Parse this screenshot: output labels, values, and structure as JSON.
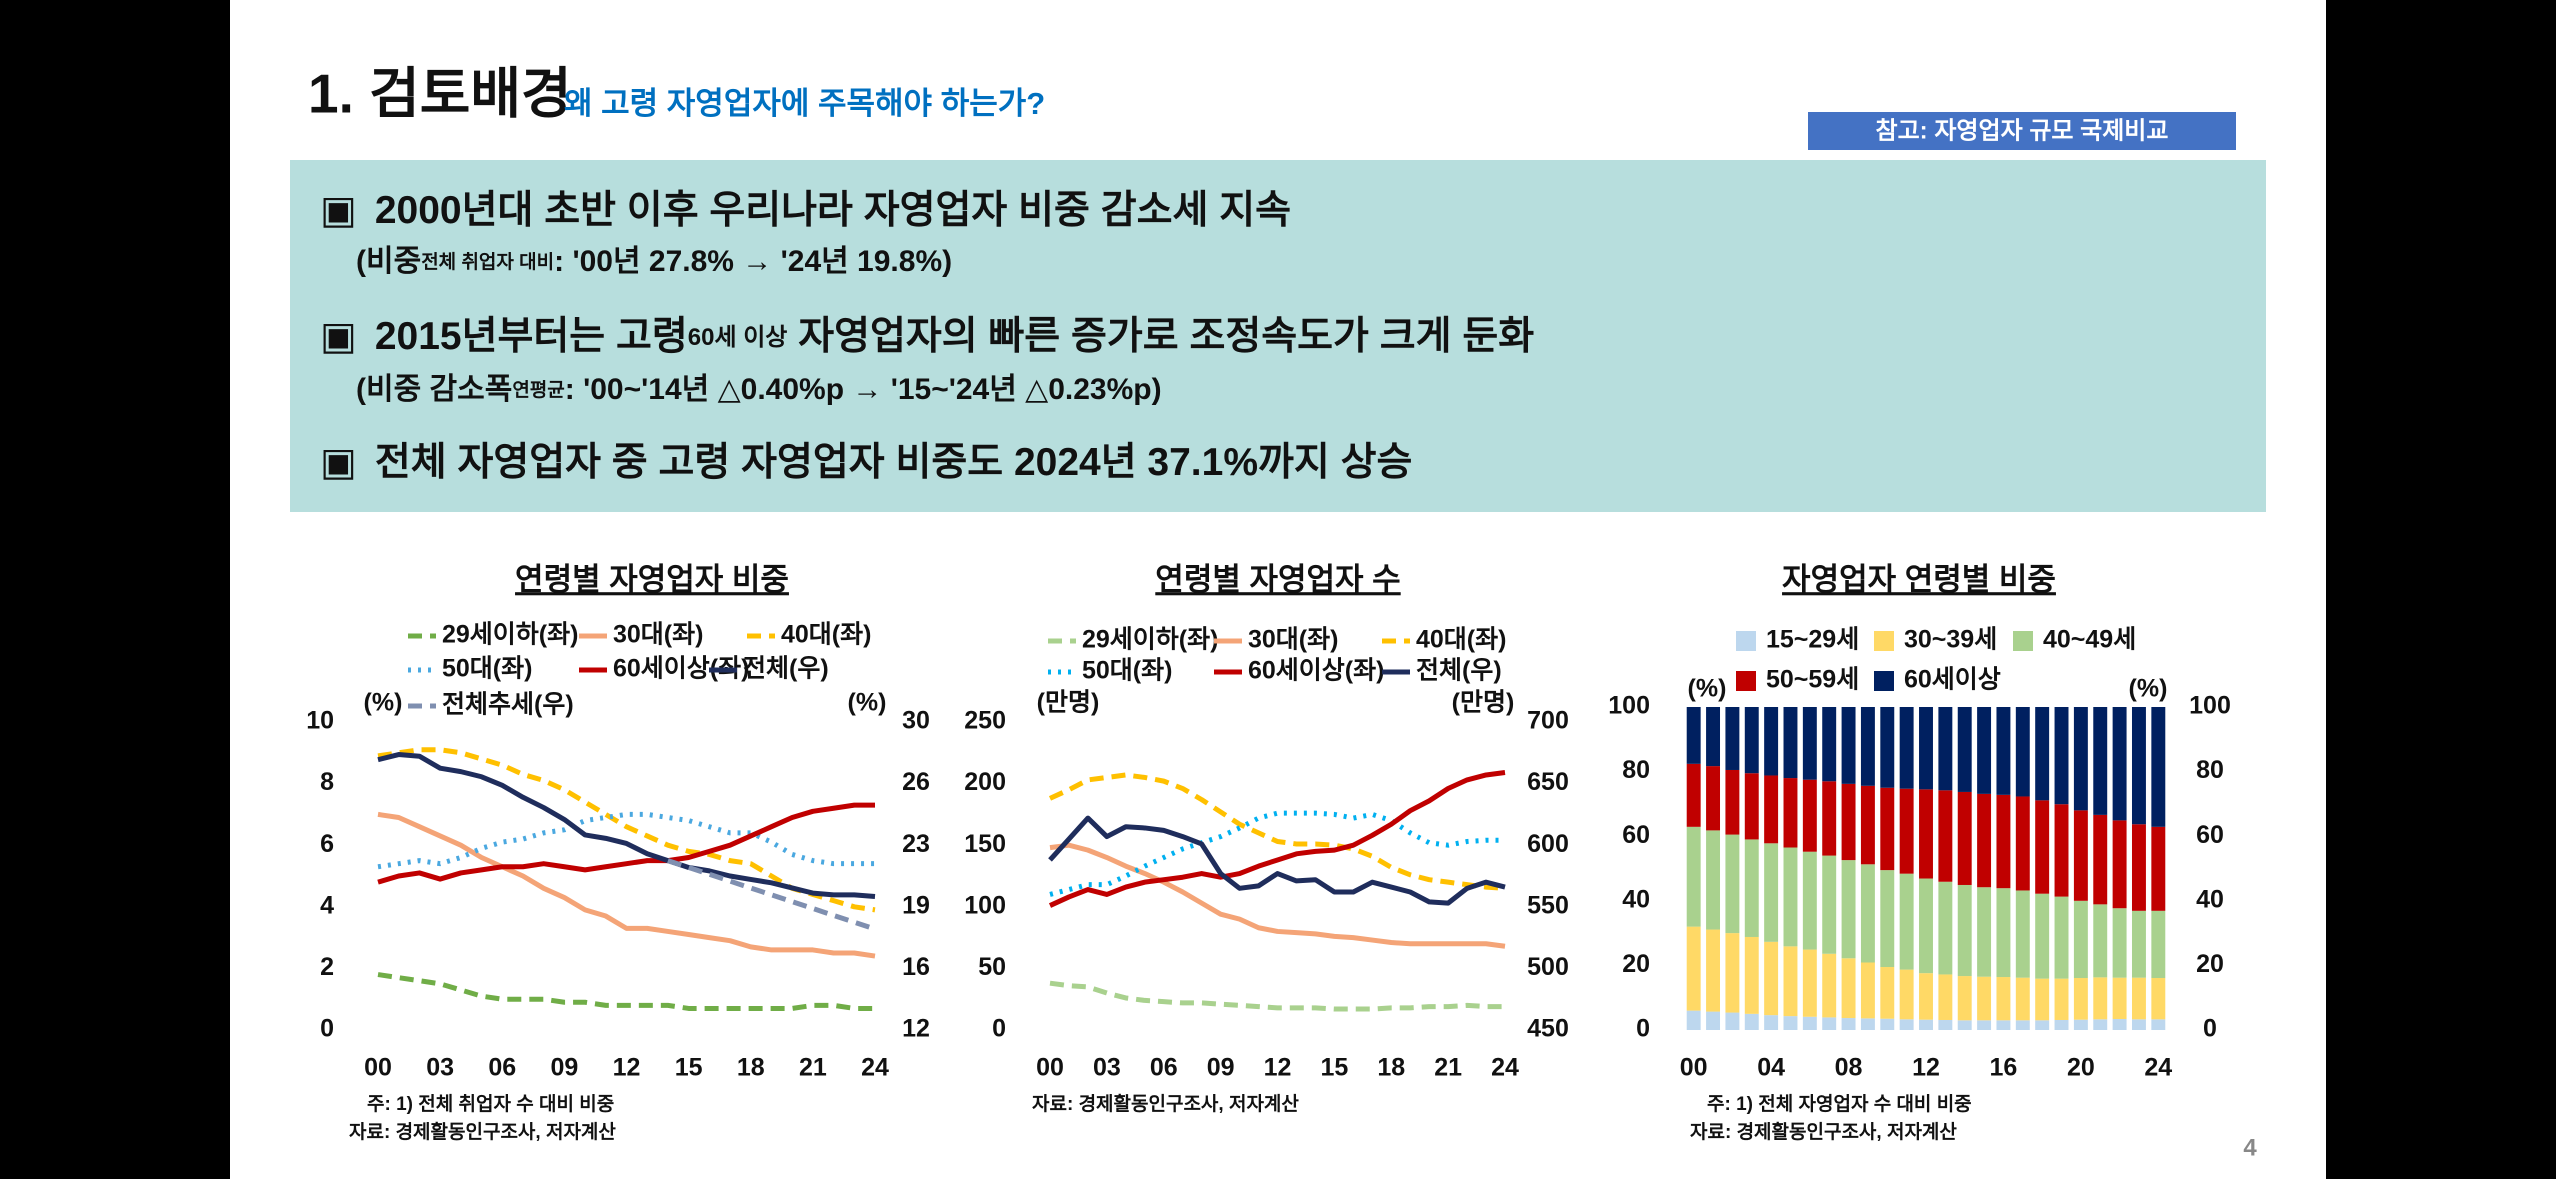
{
  "header": {
    "title": "1. 검토배경",
    "subtitle": "왜 고령 자영업자에 주목해야 하는가?",
    "tag": "참고: 자영업자 규모 국제비교"
  },
  "bullet_symbol": "▣",
  "bullets": [
    {
      "main": [
        "2000년대 초반 이후 우리나라 자영업자 비중 감소세 지속"
      ],
      "sub": [
        "(비중",
        "전체 취업자 대비",
        ": '00년 27.8% → '24년 19.8%)"
      ]
    },
    {
      "main": [
        "2015년부터는 고령",
        "60세 이상",
        " 자영업자의 빠른 증가로 조정속도가 크게 둔화"
      ],
      "sub": [
        "(비중 감소폭",
        "연평균",
        ": '00~'14년 △0.40%p → '15~'24년 △0.23%p)"
      ]
    },
    {
      "main": [
        "전체 자영업자 중 고령 자영업자 비중도 2024년 37.1%까지 상승"
      ]
    }
  ],
  "page_number": "4",
  "chart_data": [
    {
      "type": "line",
      "title": "연령별 자영업자 비중",
      "ylabel": "(%)",
      "y2label": "(%)",
      "x": [
        0,
        1,
        2,
        3,
        4,
        5,
        6,
        7,
        8,
        9,
        10,
        11,
        12,
        13,
        14,
        15,
        16,
        17,
        18,
        19,
        20,
        21,
        22,
        23,
        24
      ],
      "xlim": [
        0,
        24
      ],
      "xticks": [
        {
          "value": 0,
          "label": "00"
        },
        {
          "value": 3,
          "label": "03"
        },
        {
          "value": 6,
          "label": "06"
        },
        {
          "value": 9,
          "label": "09"
        },
        12,
        15,
        18,
        21,
        24
      ],
      "ylim": [
        0,
        10
      ],
      "yticks": [
        0,
        2,
        4,
        6,
        8,
        10
      ],
      "y2lim": [
        12,
        30
      ],
      "y2ticks": [
        12,
        {
          "value": 15.6,
          "label": "16"
        },
        {
          "value": 19.2,
          "label": "19"
        },
        {
          "value": 22.8,
          "label": "23"
        },
        {
          "value": 26.4,
          "label": "26"
        },
        30
      ],
      "series": [
        {
          "name": "29세이하(좌)",
          "color": "#70ad47",
          "dash": "dashed",
          "values": [
            1.8,
            1.7,
            1.6,
            1.5,
            1.3,
            1.1,
            1.0,
            1.0,
            1.0,
            0.9,
            0.9,
            0.8,
            0.8,
            0.8,
            0.8,
            0.7,
            0.7,
            0.7,
            0.7,
            0.7,
            0.7,
            0.8,
            0.8,
            0.7,
            0.7
          ]
        },
        {
          "name": "30대(좌)",
          "color": "#f4a477",
          "dash": "solid",
          "values": [
            7.0,
            6.9,
            6.6,
            6.3,
            6.0,
            5.6,
            5.3,
            5.0,
            4.6,
            4.3,
            3.9,
            3.7,
            3.3,
            3.3,
            3.2,
            3.1,
            3.0,
            2.9,
            2.7,
            2.6,
            2.6,
            2.6,
            2.5,
            2.5,
            2.4
          ]
        },
        {
          "name": "40대(좌)",
          "color": "#ffc000",
          "dash": "dashed",
          "values": [
            8.9,
            9.0,
            9.1,
            9.1,
            9.0,
            8.8,
            8.6,
            8.3,
            8.1,
            7.8,
            7.4,
            7.0,
            6.6,
            6.3,
            6.0,
            5.8,
            5.7,
            5.5,
            5.4,
            5.0,
            4.6,
            4.4,
            4.2,
            4.0,
            3.9
          ]
        },
        {
          "name": "50대(좌)",
          "color": "#4aa8e0",
          "dash": "dotted",
          "values": [
            5.3,
            5.4,
            5.5,
            5.4,
            5.6,
            5.9,
            6.1,
            6.2,
            6.4,
            6.5,
            6.8,
            6.9,
            7.0,
            7.0,
            6.9,
            6.8,
            6.6,
            6.4,
            6.4,
            6.1,
            5.7,
            5.5,
            5.4,
            5.4,
            5.4
          ]
        },
        {
          "name": "60세이상(좌)",
          "color": "#c00000",
          "dash": "solid",
          "values": [
            4.8,
            5.0,
            5.1,
            4.9,
            5.1,
            5.2,
            5.3,
            5.3,
            5.4,
            5.3,
            5.2,
            5.3,
            5.4,
            5.5,
            5.5,
            5.6,
            5.8,
            6.0,
            6.3,
            6.6,
            6.9,
            7.1,
            7.2,
            7.3,
            7.3
          ]
        },
        {
          "name": "전체(우)",
          "color": "#1f2d5c",
          "dash": "solid",
          "axis": "y2",
          "values": [
            27.8,
            28.1,
            28.0,
            27.3,
            27.1,
            26.8,
            26.3,
            25.6,
            25.0,
            24.3,
            23.4,
            23.2,
            22.9,
            22.3,
            21.9,
            21.5,
            21.3,
            21.0,
            20.8,
            20.6,
            20.3,
            20.0,
            19.9,
            19.9,
            19.8
          ]
        },
        {
          "name": "전체추세(우)",
          "color": "#7f8fb0",
          "dash": "dashed",
          "axis": "y2",
          "values": [
            null,
            null,
            null,
            null,
            null,
            null,
            null,
            null,
            null,
            null,
            null,
            null,
            null,
            null,
            21.9,
            21.5,
            21.1,
            20.7,
            20.3,
            19.9,
            19.5,
            19.1,
            18.7,
            18.3,
            17.9
          ]
        }
      ],
      "notes": [
        "주: 1) 전체 취업자 수 대비 비중",
        "자료: 경제활동인구조사, 저자계산"
      ]
    },
    {
      "type": "line",
      "title": "연령별 자영업자 수",
      "ylabel": "(만명)",
      "y2label": "(만명)",
      "x": [
        0,
        1,
        2,
        3,
        4,
        5,
        6,
        7,
        8,
        9,
        10,
        11,
        12,
        13,
        14,
        15,
        16,
        17,
        18,
        19,
        20,
        21,
        22,
        23,
        24
      ],
      "xlim": [
        0,
        24
      ],
      "xticks": [
        {
          "value": 0,
          "label": "00"
        },
        {
          "value": 3,
          "label": "03"
        },
        {
          "value": 6,
          "label": "06"
        },
        {
          "value": 9,
          "label": "09"
        },
        12,
        15,
        18,
        21,
        24
      ],
      "ylim": [
        0,
        250
      ],
      "yticks": [
        0,
        50,
        100,
        150,
        200,
        250
      ],
      "y2lim": [
        450,
        700
      ],
      "y2ticks": [
        450,
        500,
        550,
        600,
        650,
        700
      ],
      "series": [
        {
          "name": "29세이하(좌)",
          "color": "#a9d18e",
          "dash": "dashed",
          "values": [
            38,
            36,
            35,
            30,
            26,
            24,
            23,
            22,
            22,
            21,
            20,
            19,
            18,
            18,
            18,
            17,
            17,
            17,
            18,
            18,
            19,
            19,
            20,
            19,
            19
          ]
        },
        {
          "name": "30대(좌)",
          "color": "#f4a477",
          "dash": "solid",
          "values": [
            148,
            150,
            146,
            140,
            133,
            127,
            120,
            112,
            103,
            94,
            90,
            83,
            80,
            79,
            78,
            76,
            75,
            73,
            71,
            70,
            70,
            70,
            70,
            70,
            68
          ]
        },
        {
          "name": "40대(좌)",
          "color": "#ffc000",
          "dash": "dashed",
          "values": [
            188,
            195,
            203,
            205,
            207,
            205,
            202,
            196,
            187,
            177,
            167,
            160,
            153,
            151,
            151,
            150,
            147,
            141,
            132,
            126,
            122,
            120,
            118,
            116,
            115
          ]
        },
        {
          "name": "50대(좌)",
          "color": "#00b0f0",
          "dash": "dotted",
          "values": [
            110,
            114,
            118,
            118,
            125,
            133,
            140,
            147,
            152,
            157,
            164,
            172,
            176,
            176,
            176,
            175,
            172,
            175,
            170,
            160,
            152,
            150,
            153,
            154,
            154
          ]
        },
        {
          "name": "60세이상(좌)",
          "color": "#c00000",
          "dash": "solid",
          "values": [
            101,
            108,
            114,
            110,
            116,
            120,
            122,
            124,
            127,
            124,
            127,
            133,
            138,
            143,
            145,
            146,
            150,
            158,
            167,
            178,
            186,
            196,
            203,
            207,
            209
          ]
        },
        {
          "name": "전체(우)",
          "color": "#1f2d5c",
          "dash": "solid",
          "axis": "y2",
          "values": [
            588,
            605,
            622,
            607,
            615,
            614,
            612,
            607,
            601,
            577,
            565,
            567,
            577,
            571,
            572,
            562,
            562,
            570,
            566,
            562,
            554,
            553,
            565,
            570,
            566
          ]
        }
      ],
      "notes": [
        "자료: 경제활동인구조사, 저자계산"
      ]
    },
    {
      "type": "bar",
      "stacked": true,
      "title": "자영업자 연령별 비중",
      "ylabel": "(%)",
      "y2label": "(%)",
      "categories": [
        "00",
        null,
        null,
        null,
        "04",
        null,
        null,
        null,
        "08",
        null,
        null,
        null,
        "12",
        null,
        null,
        null,
        "16",
        null,
        null,
        null,
        "20",
        null,
        null,
        null,
        "24"
      ],
      "ylim": [
        0,
        100
      ],
      "yticks": [
        0,
        20,
        40,
        60,
        80,
        100
      ],
      "y2lim": [
        0,
        100
      ],
      "y2ticks": [
        0,
        20,
        40,
        60,
        80,
        100
      ],
      "series": [
        {
          "name": "15~29세",
          "color": "#bdd7ee",
          "values": [
            6,
            5.7,
            5.4,
            5,
            4.6,
            4.3,
            4.1,
            3.9,
            3.7,
            3.6,
            3.5,
            3.3,
            3.2,
            3.1,
            3.0,
            3.0,
            3.0,
            3.0,
            3.0,
            3.1,
            3.2,
            3.3,
            3.4,
            3.3,
            3.3
          ]
        },
        {
          "name": "30~39세",
          "color": "#ffd966",
          "values": [
            26,
            25.4,
            24.6,
            23.8,
            22.7,
            21.6,
            20.8,
            19.7,
            18.5,
            17.3,
            16.0,
            15.4,
            14.4,
            14.1,
            13.7,
            13.5,
            13.4,
            13.2,
            12.9,
            12.8,
            12.9,
            13.0,
            12.8,
            12.9,
            12.8
          ]
        },
        {
          "name": "40~49세",
          "color": "#a9d18e",
          "values": [
            30.9,
            30.7,
            30.5,
            30.2,
            30.5,
            30.6,
            30.3,
            30.4,
            30.4,
            30.4,
            30.0,
            29.7,
            29.3,
            28.7,
            28.2,
            27.7,
            27.5,
            27.0,
            26.3,
            25.4,
            23.9,
            22.6,
            21.5,
            20.7,
            20.8
          ]
        },
        {
          "name": "50~59세",
          "color": "#c00000",
          "values": [
            19.5,
            19.9,
            20.0,
            20.5,
            21.0,
            21.5,
            22.3,
            23.0,
            23.6,
            24.3,
            25.5,
            26.3,
            27.6,
            28.3,
            28.8,
            28.9,
            28.9,
            29.1,
            28.9,
            28.6,
            28.0,
            27.7,
            27.2,
            26.8,
            26.0
          ]
        },
        {
          "name": "60세이상",
          "color": "#002060",
          "values": [
            17.6,
            18.3,
            19.5,
            20.5,
            21.2,
            22.0,
            22.5,
            23.0,
            23.8,
            24.4,
            25.0,
            25.3,
            25.5,
            25.8,
            26.3,
            26.9,
            27.2,
            27.7,
            28.9,
            30.1,
            32.0,
            33.4,
            35.1,
            36.3,
            37.1
          ]
        }
      ],
      "notes": [
        "주: 1) 전체 자영업자 수 대비 비중",
        "자료: 경제활동인구조사, 저자계산"
      ]
    }
  ]
}
